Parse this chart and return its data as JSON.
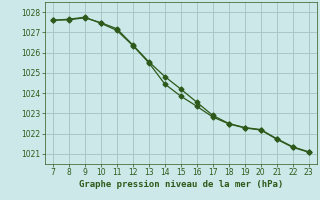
{
  "line1_x": [
    7,
    8,
    9,
    10,
    11,
    12,
    13,
    14,
    15,
    16,
    17,
    18,
    19,
    20,
    21,
    22,
    23
  ],
  "line1_y": [
    1027.6,
    1027.65,
    1027.75,
    1027.45,
    1027.1,
    1026.35,
    1025.5,
    1024.45,
    1023.85,
    1023.35,
    1022.82,
    1022.48,
    1022.28,
    1022.18,
    1021.72,
    1021.32,
    1021.08
  ],
  "line2_x": [
    7,
    8,
    9,
    10,
    11,
    12,
    13,
    14,
    15,
    16,
    17,
    18,
    19,
    20,
    21,
    22,
    23
  ],
  "line2_y": [
    1027.6,
    1027.62,
    1027.72,
    1027.48,
    1027.18,
    1026.38,
    1025.55,
    1024.82,
    1024.2,
    1023.55,
    1022.9,
    1022.5,
    1022.3,
    1022.2,
    1021.75,
    1021.35,
    1021.1
  ],
  "line_color": "#2d5a1b",
  "bg_color": "#cce8e8",
  "grid_color": "#a8c8c8",
  "xlabel": "Graphe pression niveau de la mer (hPa)",
  "xlabel_color": "#2d5a1b",
  "tick_color": "#2d5a1b",
  "ylim": [
    1020.5,
    1028.5
  ],
  "yticks": [
    1021,
    1022,
    1023,
    1024,
    1025,
    1026,
    1027,
    1028
  ],
  "xticks": [
    7,
    8,
    9,
    10,
    11,
    12,
    13,
    14,
    15,
    16,
    17,
    18,
    19,
    20,
    21,
    22,
    23
  ],
  "xlim": [
    6.5,
    23.5
  ]
}
